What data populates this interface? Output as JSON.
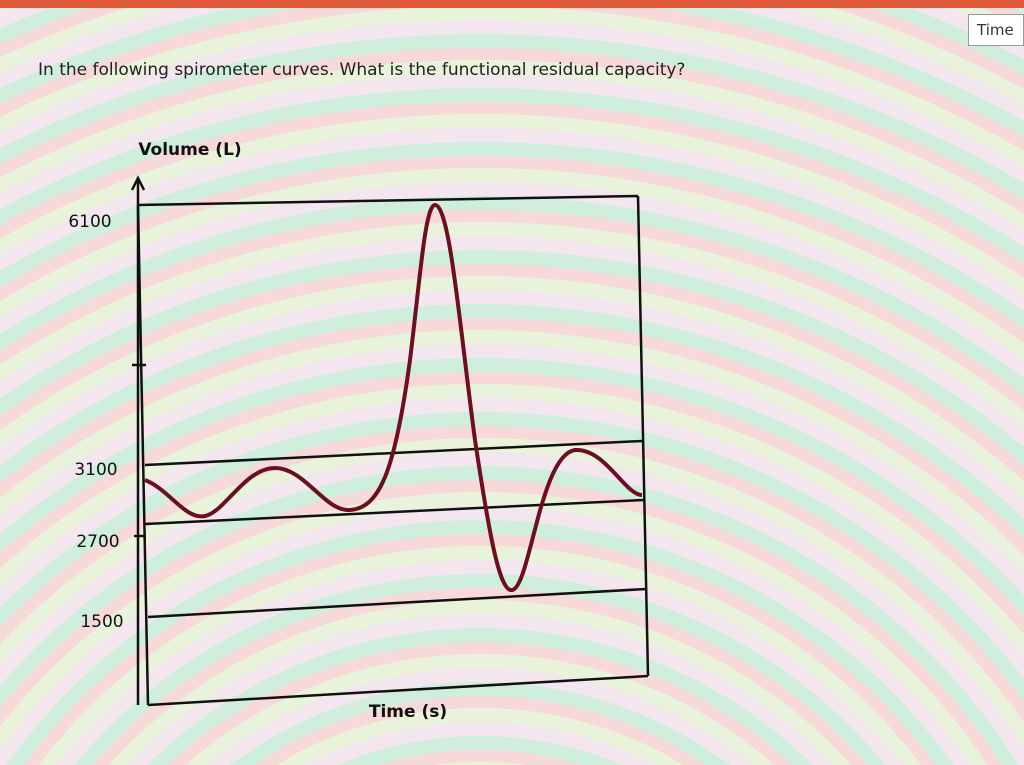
{
  "header": {
    "tab": "Time"
  },
  "question": "In the following spirometer curves. What is the functional residual capacity?",
  "diagram": {
    "y_label": "Volume (L)",
    "x_label": "Time (s)",
    "levels": [
      6100,
      3100,
      2700,
      1500
    ]
  }
}
